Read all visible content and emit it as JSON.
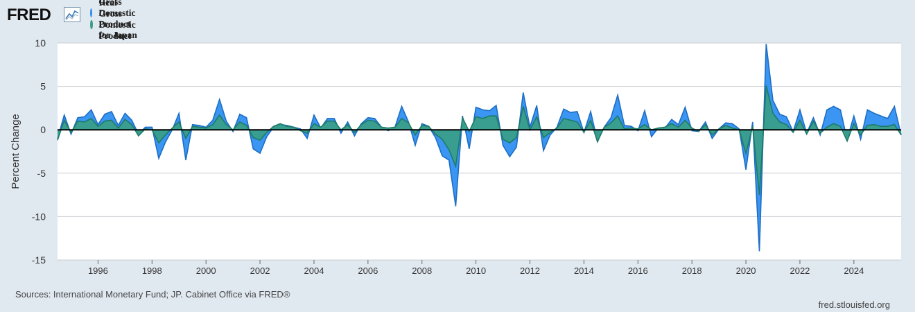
{
  "header": {
    "logo_text": "FRED",
    "logo_icon": "line-chart-icon"
  },
  "colors": {
    "nominal": "#2f8ff2",
    "nominal_line": "#1d6ec4",
    "real": "#3a9e88",
    "real_line": "#1e7a68",
    "zero_line": "#000000",
    "plot_bg": "#ffffff",
    "grid": "#c8ccd0"
  },
  "footer": {
    "sources": "Sources: International Monetary Fund; JP. Cabinet Office via FRED®",
    "url": "fred.stlouisfed.org"
  },
  "chart_data": {
    "type": "area",
    "title": "",
    "xlabel": "",
    "ylabel": "Percent Change",
    "ylim": [
      -15,
      10
    ],
    "yticks": [
      10,
      5,
      0,
      -5,
      -10,
      -15
    ],
    "xlim": [
      1994.5,
      2025.75
    ],
    "xticks": [
      "1996",
      "1998",
      "2000",
      "2002",
      "2004",
      "2006",
      "2008",
      "2010",
      "2012",
      "2014",
      "2016",
      "2018",
      "2020",
      "2022",
      "2024"
    ],
    "legend_position": "top-left",
    "grid": true,
    "series": [
      {
        "name": "Nominal Gross Domestic Product for Japan",
        "start": 1994.5,
        "step": 0.25,
        "values": [
          -1.0,
          1.7,
          -0.5,
          1.4,
          1.5,
          2.3,
          0.6,
          1.8,
          2.1,
          0.5,
          1.9,
          1.1,
          -0.5,
          0.3,
          0.3,
          -3.3,
          -1.4,
          0.0,
          1.9,
          -3.5,
          0.6,
          0.5,
          0.3,
          1.1,
          3.5,
          1.0,
          -0.2,
          1.8,
          1.4,
          -2.2,
          -2.7,
          -0.8,
          0.3,
          0.6,
          0.5,
          0.3,
          0.1,
          -1.0,
          1.7,
          0.2,
          1.3,
          1.3,
          -0.4,
          0.9,
          -0.7,
          0.7,
          1.4,
          1.3,
          0.3,
          -0.1,
          0.3,
          2.7,
          0.9,
          -1.8,
          0.7,
          0.4,
          -0.9,
          -3.0,
          -3.5,
          -8.8,
          1.6,
          -2.2,
          2.6,
          2.3,
          2.2,
          2.8,
          -1.8,
          -3.1,
          -2.0,
          4.3,
          0.3,
          2.8,
          -2.4,
          -0.6,
          0.3,
          2.4,
          2.0,
          2.1,
          -0.3,
          2.1,
          -1.3,
          0.3,
          1.4,
          4.0,
          0.5,
          0.4,
          -0.1,
          2.2,
          -0.8,
          0.2,
          0.2,
          1.2,
          0.6,
          2.6,
          -0.1,
          -0.2,
          0.9,
          -1.0,
          0.1,
          0.8,
          0.7,
          0.1,
          -4.6,
          0.9,
          -14.0,
          9.9,
          3.4,
          1.8,
          1.5,
          -0.2,
          2.3,
          -0.4,
          1.4,
          -0.6,
          2.3,
          2.7,
          2.3,
          -1.1,
          1.6,
          -1.1,
          2.3,
          1.9,
          1.6,
          1.3,
          2.7,
          -0.6
        ]
      },
      {
        "name": "Real Gross Domestic Product for Japan",
        "start": 1994.5,
        "step": 0.25,
        "values": [
          -1.2,
          1.1,
          -0.3,
          1.0,
          0.9,
          1.3,
          0.4,
          1.0,
          1.1,
          0.2,
          1.2,
          0.6,
          -0.7,
          0.1,
          0.0,
          -1.5,
          -0.6,
          0.2,
          0.9,
          -1.0,
          0.4,
          0.3,
          0.2,
          0.6,
          1.7,
          0.6,
          0.0,
          0.9,
          0.5,
          -0.9,
          -1.2,
          -0.3,
          0.4,
          0.7,
          0.4,
          0.3,
          -0.1,
          -0.4,
          0.7,
          0.3,
          1.0,
          1.0,
          0.0,
          0.6,
          -0.3,
          0.6,
          1.1,
          1.0,
          0.3,
          0.2,
          0.3,
          1.3,
          0.8,
          -0.6,
          0.5,
          0.4,
          -0.5,
          -1.1,
          -2.3,
          -4.2,
          1.4,
          -0.2,
          1.5,
          1.3,
          1.6,
          1.6,
          -1.1,
          -1.5,
          -0.9,
          2.7,
          0.0,
          1.5,
          -0.9,
          -0.3,
          0.2,
          1.3,
          1.1,
          0.9,
          -0.3,
          1.1,
          -1.4,
          0.3,
          0.8,
          1.6,
          0.1,
          0.2,
          0.1,
          0.6,
          0.0,
          0.2,
          0.3,
          0.7,
          0.3,
          1.1,
          0.2,
          -0.2,
          0.6,
          -0.6,
          0.1,
          0.5,
          0.2,
          0.0,
          -2.7,
          0.4,
          -7.5,
          5.1,
          1.9,
          0.9,
          0.6,
          -0.3,
          1.1,
          -0.5,
          1.0,
          -0.4,
          0.3,
          0.7,
          0.4,
          -1.3,
          0.7,
          -0.6,
          0.5,
          0.6,
          0.4,
          0.4,
          0.6,
          -0.6
        ]
      }
    ]
  }
}
